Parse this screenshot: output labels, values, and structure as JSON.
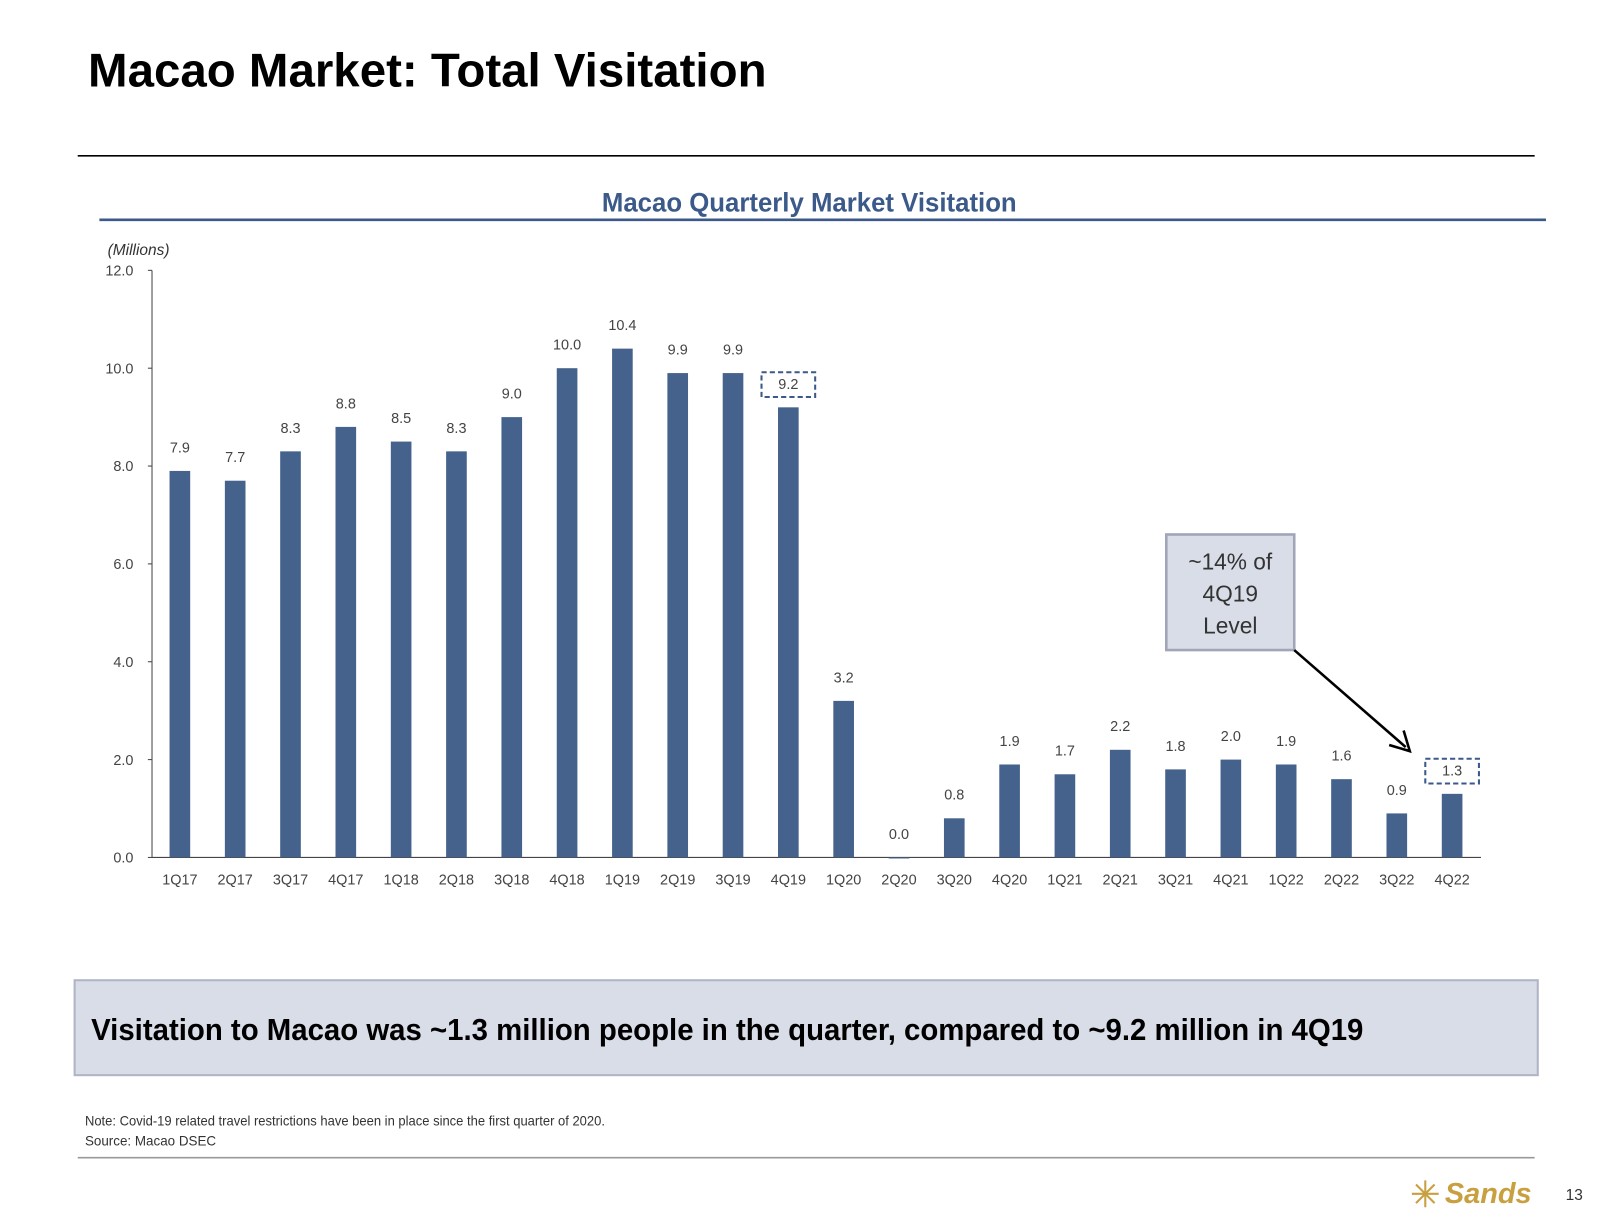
{
  "title": "Macao Market: Total Visitation",
  "chart_data": {
    "type": "bar",
    "title": "Macao Quarterly Market Visitation",
    "y_label": "(Millions)",
    "categories": [
      "1Q17",
      "2Q17",
      "3Q17",
      "4Q17",
      "1Q18",
      "2Q18",
      "3Q18",
      "4Q18",
      "1Q19",
      "2Q19",
      "3Q19",
      "4Q19",
      "1Q20",
      "2Q20",
      "3Q20",
      "4Q20",
      "1Q21",
      "2Q21",
      "3Q21",
      "4Q21",
      "1Q22",
      "2Q22",
      "3Q22",
      "4Q22"
    ],
    "values": [
      7.9,
      7.7,
      8.3,
      8.8,
      8.5,
      8.3,
      9.0,
      10.0,
      10.4,
      9.9,
      9.9,
      9.2,
      3.2,
      0.0,
      0.8,
      1.9,
      1.7,
      2.2,
      1.8,
      2.0,
      1.9,
      1.6,
      0.9,
      1.3
    ],
    "value_labels": [
      "7.9",
      "7.7",
      "8.3",
      "8.8",
      "8.5",
      "8.3",
      "9.0",
      "10.0",
      "10.4",
      "9.9",
      "9.9",
      "9.2",
      "3.2",
      "0.0",
      "0.8",
      "1.9",
      "1.7",
      "2.2",
      "1.8",
      "2.0",
      "1.9",
      "1.6",
      "0.9",
      "1.3"
    ],
    "color": "#44628c",
    "highlight": [
      11,
      23
    ],
    "ylim": [
      0,
      12
    ],
    "yticks": [
      {
        "value": 0,
        "label": "0.0"
      },
      {
        "value": 2,
        "label": "2.0"
      },
      {
        "value": 4,
        "label": "4.0"
      },
      {
        "value": 6,
        "label": "6.0"
      },
      {
        "value": 8,
        "label": "8.0"
      },
      {
        "value": 10,
        "label": "10.0"
      },
      {
        "value": 12,
        "label": "12.0"
      }
    ],
    "grid": false,
    "annotation": {
      "lines": [
        "~14% of",
        "4Q19",
        "Level"
      ]
    }
  },
  "callout": "Visitation to Macao was ~1.3 million people in the quarter, compared to ~9.2 million in 4Q19",
  "notes": [
    "Note: Covid-19 related travel restrictions have been in place since the first quarter of 2020.",
    "Source: Macao DSEC"
  ],
  "logo": "Sands",
  "page_number": "13"
}
